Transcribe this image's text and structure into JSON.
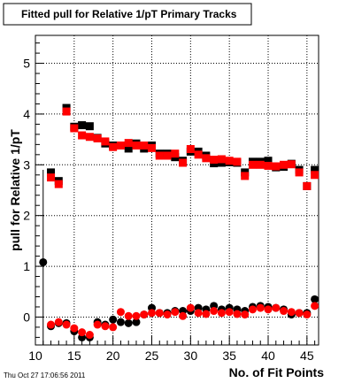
{
  "chart_data": {
    "type": "scatter",
    "title": "Fitted pull for Relative 1/pT Primary Tracks",
    "xlabel": "No. of Fit Points",
    "ylabel": "pull for Relative 1/pT",
    "xlim": [
      10,
      46.5
    ],
    "ylim": [
      -0.55,
      5.55
    ],
    "x_ticks": [
      10,
      15,
      20,
      25,
      30,
      35,
      40,
      45
    ],
    "y_ticks": [
      0,
      1,
      2,
      3,
      4,
      5
    ],
    "grid": true,
    "timestamp": "Thu Oct 27 17:06:56 2011",
    "series": [
      {
        "color": "#000000",
        "marker": "square",
        "points": [
          [
            12,
            2.85
          ],
          [
            13,
            2.68
          ],
          [
            14,
            4.12
          ],
          [
            15,
            3.75
          ],
          [
            16,
            3.78
          ],
          [
            17,
            3.76
          ],
          [
            18,
            3.53
          ],
          [
            19,
            3.42
          ],
          [
            20,
            3.38
          ],
          [
            21,
            3.38
          ],
          [
            22,
            3.32
          ],
          [
            23,
            3.42
          ],
          [
            24,
            3.32
          ],
          [
            25,
            3.38
          ],
          [
            26,
            3.22
          ],
          [
            27,
            3.22
          ],
          [
            28,
            3.15
          ],
          [
            29,
            3.08
          ],
          [
            30,
            3.26
          ],
          [
            31,
            3.26
          ],
          [
            32,
            3.18
          ],
          [
            33,
            3.03
          ],
          [
            34,
            3.04
          ],
          [
            35,
            3.05
          ],
          [
            36,
            3.04
          ],
          [
            37,
            2.85
          ],
          [
            38,
            3.06
          ],
          [
            39,
            3.06
          ],
          [
            40,
            3.08
          ],
          [
            41,
            2.95
          ],
          [
            42,
            2.96
          ],
          [
            43,
            3.02
          ],
          [
            44,
            2.9
          ],
          [
            45,
            2.58
          ],
          [
            46,
            2.9
          ]
        ]
      },
      {
        "color": "#ff0000",
        "marker": "square",
        "points": [
          [
            12,
            2.75
          ],
          [
            13,
            2.62
          ],
          [
            14,
            4.05
          ],
          [
            15,
            3.72
          ],
          [
            16,
            3.58
          ],
          [
            17,
            3.55
          ],
          [
            18,
            3.52
          ],
          [
            19,
            3.46
          ],
          [
            20,
            3.35
          ],
          [
            21,
            3.38
          ],
          [
            22,
            3.43
          ],
          [
            23,
            3.38
          ],
          [
            24,
            3.38
          ],
          [
            25,
            3.33
          ],
          [
            26,
            3.18
          ],
          [
            27,
            3.18
          ],
          [
            28,
            3.22
          ],
          [
            29,
            3.04
          ],
          [
            30,
            3.31
          ],
          [
            31,
            3.2
          ],
          [
            32,
            3.13
          ],
          [
            33,
            3.1
          ],
          [
            34,
            3.11
          ],
          [
            35,
            3.08
          ],
          [
            36,
            3.06
          ],
          [
            37,
            2.78
          ],
          [
            38,
            3.0
          ],
          [
            39,
            3.0
          ],
          [
            40,
            2.98
          ],
          [
            41,
            2.97
          ],
          [
            42,
            3.0
          ],
          [
            43,
            3.01
          ],
          [
            44,
            2.85
          ],
          [
            45,
            2.58
          ],
          [
            46,
            2.8
          ]
        ]
      },
      {
        "color": "#000000",
        "marker": "circle",
        "points": [
          [
            11,
            1.08
          ],
          [
            12,
            -0.18
          ],
          [
            13,
            -0.12
          ],
          [
            14,
            -0.12
          ],
          [
            15,
            -0.28
          ],
          [
            16,
            -0.4
          ],
          [
            17,
            -0.4
          ],
          [
            18,
            -0.1
          ],
          [
            19,
            -0.15
          ],
          [
            20,
            -0.05
          ],
          [
            21,
            -0.1
          ],
          [
            22,
            -0.12
          ],
          [
            23,
            -0.1
          ],
          [
            24,
            0.05
          ],
          [
            25,
            0.18
          ],
          [
            26,
            0.08
          ],
          [
            27,
            0.08
          ],
          [
            28,
            0.12
          ],
          [
            29,
            0.12
          ],
          [
            30,
            0.12
          ],
          [
            31,
            0.18
          ],
          [
            32,
            0.15
          ],
          [
            33,
            0.22
          ],
          [
            34,
            0.15
          ],
          [
            35,
            0.18
          ],
          [
            36,
            0.15
          ],
          [
            37,
            0.12
          ],
          [
            38,
            0.2
          ],
          [
            39,
            0.22
          ],
          [
            40,
            0.2
          ],
          [
            41,
            0.18
          ],
          [
            42,
            0.15
          ],
          [
            43,
            0.05
          ],
          [
            44,
            0.08
          ],
          [
            45,
            0.08
          ],
          [
            46,
            0.35
          ]
        ]
      },
      {
        "color": "#ff0000",
        "marker": "circle",
        "points": [
          [
            12,
            -0.15
          ],
          [
            13,
            -0.1
          ],
          [
            14,
            -0.15
          ],
          [
            15,
            -0.22
          ],
          [
            16,
            -0.3
          ],
          [
            17,
            -0.35
          ],
          [
            18,
            -0.15
          ],
          [
            19,
            -0.18
          ],
          [
            20,
            -0.2
          ],
          [
            21,
            0.1
          ],
          [
            22,
            0.02
          ],
          [
            23,
            0.02
          ],
          [
            24,
            0.05
          ],
          [
            25,
            0.08
          ],
          [
            26,
            0.08
          ],
          [
            27,
            0.05
          ],
          [
            28,
            0.1
          ],
          [
            29,
            0.02
          ],
          [
            30,
            0.18
          ],
          [
            31,
            0.08
          ],
          [
            32,
            0.06
          ],
          [
            33,
            0.12
          ],
          [
            34,
            0.08
          ],
          [
            35,
            0.1
          ],
          [
            36,
            0.06
          ],
          [
            37,
            0.05
          ],
          [
            38,
            0.15
          ],
          [
            39,
            0.18
          ],
          [
            40,
            0.15
          ],
          [
            41,
            0.18
          ],
          [
            42,
            0.12
          ],
          [
            43,
            0.1
          ],
          [
            44,
            0.08
          ],
          [
            45,
            0.05
          ],
          [
            46,
            0.22
          ]
        ]
      }
    ]
  }
}
